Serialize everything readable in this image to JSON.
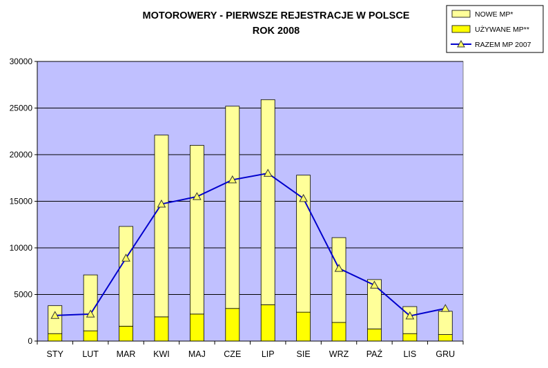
{
  "chart_data": {
    "type": "bar",
    "stacked": true,
    "title_lines": [
      "MOTOROWERY - PIERWSZE REJESTRACJE W POLSCE",
      "ROK 2008"
    ],
    "categories": [
      "STY",
      "LUT",
      "MAR",
      "KWI",
      "MAJ",
      "CZE",
      "LIP",
      "SIE",
      "WRZ",
      "PAŹ",
      "LIS",
      "GRU"
    ],
    "series": [
      {
        "name": "NOWE MP*",
        "kind": "bar",
        "color": "#FFFF99",
        "values": [
          3000,
          6000,
          10700,
          19500,
          18100,
          21700,
          22000,
          14700,
          9100,
          5300,
          2900,
          2500
        ]
      },
      {
        "name": "UŻYWANE MP**",
        "kind": "bar",
        "color": "#FFFF00",
        "values": [
          800,
          1100,
          1600,
          2600,
          2900,
          3500,
          3900,
          3100,
          2000,
          1300,
          800,
          700
        ]
      },
      {
        "name": "RAZEM MP 2007",
        "kind": "line",
        "color": "#0000CC",
        "marker": "triangle",
        "values": [
          2750,
          2900,
          8900,
          14700,
          15500,
          17300,
          18000,
          15300,
          7800,
          6000,
          2700,
          3500
        ]
      }
    ],
    "y_ticks": [
      "0",
      "5000",
      "10000",
      "15000",
      "20000",
      "25000",
      "30000"
    ],
    "ylim": [
      0,
      30000
    ],
    "grid": true,
    "plot_background": "#C0C0FF",
    "legend_position": "top-right"
  }
}
